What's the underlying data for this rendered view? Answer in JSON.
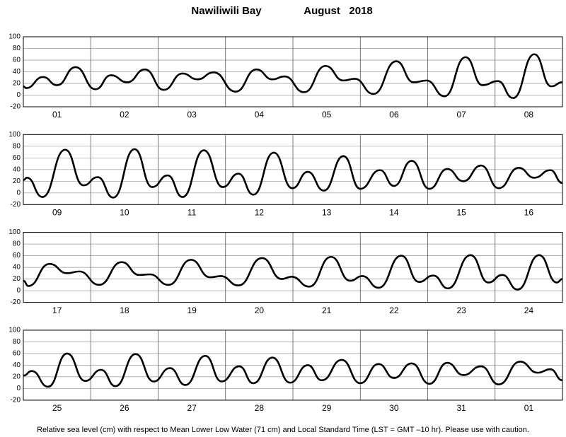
{
  "title": "Nawiliwili Bay",
  "subtitle": "August   2018",
  "footnote": "Relative sea level (cm) with respect to Mean Lower Low Water (71 cm) and Local Standard Time (LST = GMT –10 hr). Please use with caution.",
  "chart_data": [
    {
      "type": "line",
      "categories": [
        "01",
        "02",
        "03",
        "04",
        "05",
        "06",
        "07",
        "08"
      ],
      "xlim": [
        0,
        192
      ],
      "xticks": [
        0,
        24,
        48,
        72,
        96,
        120,
        144,
        168,
        192
      ],
      "ylim": [
        -20,
        100
      ],
      "yticks": [
        -20,
        0,
        20,
        40,
        60,
        80,
        100
      ],
      "grid": true,
      "color": "#000000",
      "x": [
        0,
        1,
        7,
        12,
        18.6,
        25.7,
        31.2,
        37,
        43.3,
        50,
        56.7,
        62,
        67.8,
        75.6,
        83,
        88.7,
        93,
        100,
        107.6,
        114,
        118,
        124.7,
        132.8,
        139,
        143.6,
        150,
        157.5,
        163.5,
        169,
        174.4,
        182,
        188,
        192
      ],
      "values": [
        15,
        12,
        31,
        17,
        48,
        10,
        34,
        22,
        44,
        9,
        37,
        27,
        39,
        6,
        44,
        27,
        32,
        5,
        50,
        25,
        28,
        2,
        58,
        22,
        25,
        -2,
        65,
        17,
        24,
        -5,
        70,
        15,
        22
      ]
    },
    {
      "type": "line",
      "categories": [
        "09",
        "10",
        "11",
        "12",
        "13",
        "14",
        "15",
        "16"
      ],
      "xlim": [
        0,
        192
      ],
      "xticks": [
        0,
        24,
        48,
        72,
        96,
        120,
        144,
        168,
        192
      ],
      "ylim": [
        -20,
        100
      ],
      "yticks": [
        -20,
        0,
        20,
        40,
        60,
        80,
        100
      ],
      "grid": true,
      "color": "#000000",
      "x": [
        0,
        1.3,
        6.8,
        14.9,
        21.4,
        26.5,
        32,
        39.6,
        45.9,
        51.4,
        56.7,
        64.3,
        71,
        76.6,
        81.9,
        89.2,
        95.8,
        101.3,
        107,
        114,
        120,
        127,
        132,
        138.3,
        144.6,
        151,
        156.7,
        163,
        169.3,
        176.4,
        182,
        187.7,
        192
      ],
      "values": [
        22,
        26,
        -7,
        74,
        13,
        27,
        -8,
        75,
        10,
        30,
        -7,
        73,
        10,
        33,
        -3,
        69,
        8,
        36,
        4,
        63,
        7,
        39,
        12,
        55,
        7,
        41,
        20,
        47,
        8,
        43,
        26,
        39,
        17
      ]
    },
    {
      "type": "line",
      "categories": [
        "17",
        "18",
        "19",
        "20",
        "21",
        "22",
        "23",
        "24"
      ],
      "xlim": [
        0,
        192
      ],
      "xticks": [
        0,
        24,
        48,
        72,
        96,
        120,
        144,
        168,
        192
      ],
      "ylim": [
        -20,
        100
      ],
      "yticks": [
        -20,
        0,
        20,
        40,
        60,
        80,
        100
      ],
      "grid": true,
      "color": "#000000",
      "x": [
        0,
        1.8,
        9.3,
        15.6,
        19.9,
        27,
        35,
        41.3,
        45,
        51.7,
        59.7,
        66.5,
        70.3,
        76.6,
        85,
        92,
        95.5,
        101.8,
        109.6,
        116.4,
        120.7,
        126.5,
        134.6,
        140.9,
        146,
        151.2,
        159.3,
        165.6,
        170.6,
        176,
        183.7,
        190,
        192
      ],
      "values": [
        17,
        8,
        46,
        30,
        33,
        10,
        49,
        27,
        28,
        10,
        53,
        23,
        25,
        9,
        56,
        20,
        24,
        7,
        58,
        17,
        25,
        5,
        60,
        15,
        26,
        4,
        61,
        14,
        27,
        2,
        61,
        14,
        20
      ]
    },
    {
      "type": "line",
      "categories": [
        "25",
        "26",
        "27",
        "28",
        "29",
        "30",
        "31",
        "01"
      ],
      "xlim": [
        0,
        192
      ],
      "xticks": [
        0,
        24,
        48,
        72,
        96,
        120,
        144,
        168,
        192
      ],
      "ylim": [
        -20,
        100
      ],
      "yticks": [
        -20,
        0,
        20,
        40,
        60,
        80,
        100
      ],
      "grid": true,
      "color": "#000000",
      "x": [
        0,
        3,
        8.8,
        15.6,
        22,
        27.7,
        32.8,
        40,
        46.4,
        52.2,
        57.7,
        64.8,
        70.6,
        76.9,
        81.9,
        88.7,
        95,
        101.3,
        106.3,
        113.4,
        120,
        126.5,
        132,
        138.3,
        144.6,
        151,
        156.7,
        163,
        169.3,
        176.9,
        183.2,
        187.7,
        192
      ],
      "values": [
        22,
        30,
        3,
        60,
        13,
        32,
        4,
        59,
        12,
        35,
        6,
        56,
        12,
        38,
        9,
        53,
        10,
        40,
        14,
        49,
        9,
        42,
        18,
        43,
        8,
        44,
        23,
        38,
        7,
        46,
        27,
        33,
        14
      ]
    }
  ]
}
